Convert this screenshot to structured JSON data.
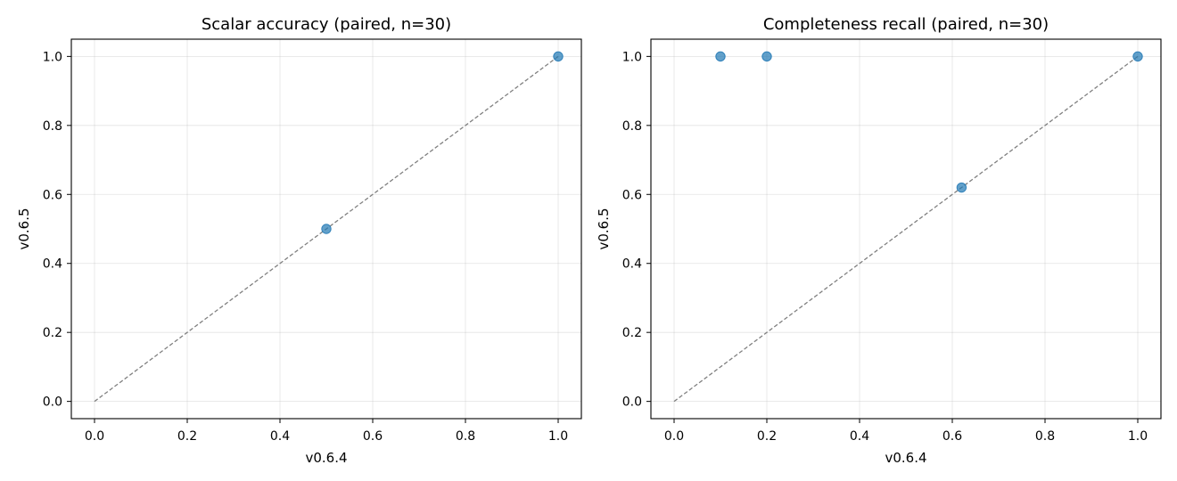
{
  "chart_data": [
    {
      "type": "scatter",
      "title": "Scalar accuracy (paired, n=30)",
      "xlabel": "v0.6.4",
      "ylabel": "v0.6.5",
      "xlim": [
        -0.05,
        1.05
      ],
      "ylim": [
        -0.05,
        1.05
      ],
      "xticks": [
        "0.0",
        "0.2",
        "0.4",
        "0.6",
        "0.8",
        "1.0"
      ],
      "yticks": [
        "0.0",
        "0.2",
        "0.4",
        "0.6",
        "0.8",
        "1.0"
      ],
      "grid": true,
      "reference_line": {
        "style": "dashed",
        "from": [
          0,
          0
        ],
        "to": [
          1,
          1
        ],
        "color": "#808080"
      },
      "marker_color": "#1f77b4",
      "points": [
        {
          "x": 0.5,
          "y": 0.5
        },
        {
          "x": 1.0,
          "y": 1.0
        }
      ]
    },
    {
      "type": "scatter",
      "title": "Completeness recall (paired, n=30)",
      "xlabel": "v0.6.4",
      "ylabel": "v0.6.5",
      "xlim": [
        -0.05,
        1.05
      ],
      "ylim": [
        -0.05,
        1.05
      ],
      "xticks": [
        "0.0",
        "0.2",
        "0.4",
        "0.6",
        "0.8",
        "1.0"
      ],
      "yticks": [
        "0.0",
        "0.2",
        "0.4",
        "0.6",
        "0.8",
        "1.0"
      ],
      "grid": true,
      "reference_line": {
        "style": "dashed",
        "from": [
          0,
          0
        ],
        "to": [
          1,
          1
        ],
        "color": "#808080"
      },
      "marker_color": "#1f77b4",
      "points": [
        {
          "x": 0.1,
          "y": 1.0
        },
        {
          "x": 0.2,
          "y": 1.0
        },
        {
          "x": 0.62,
          "y": 0.62
        },
        {
          "x": 1.0,
          "y": 1.0
        }
      ]
    }
  ]
}
